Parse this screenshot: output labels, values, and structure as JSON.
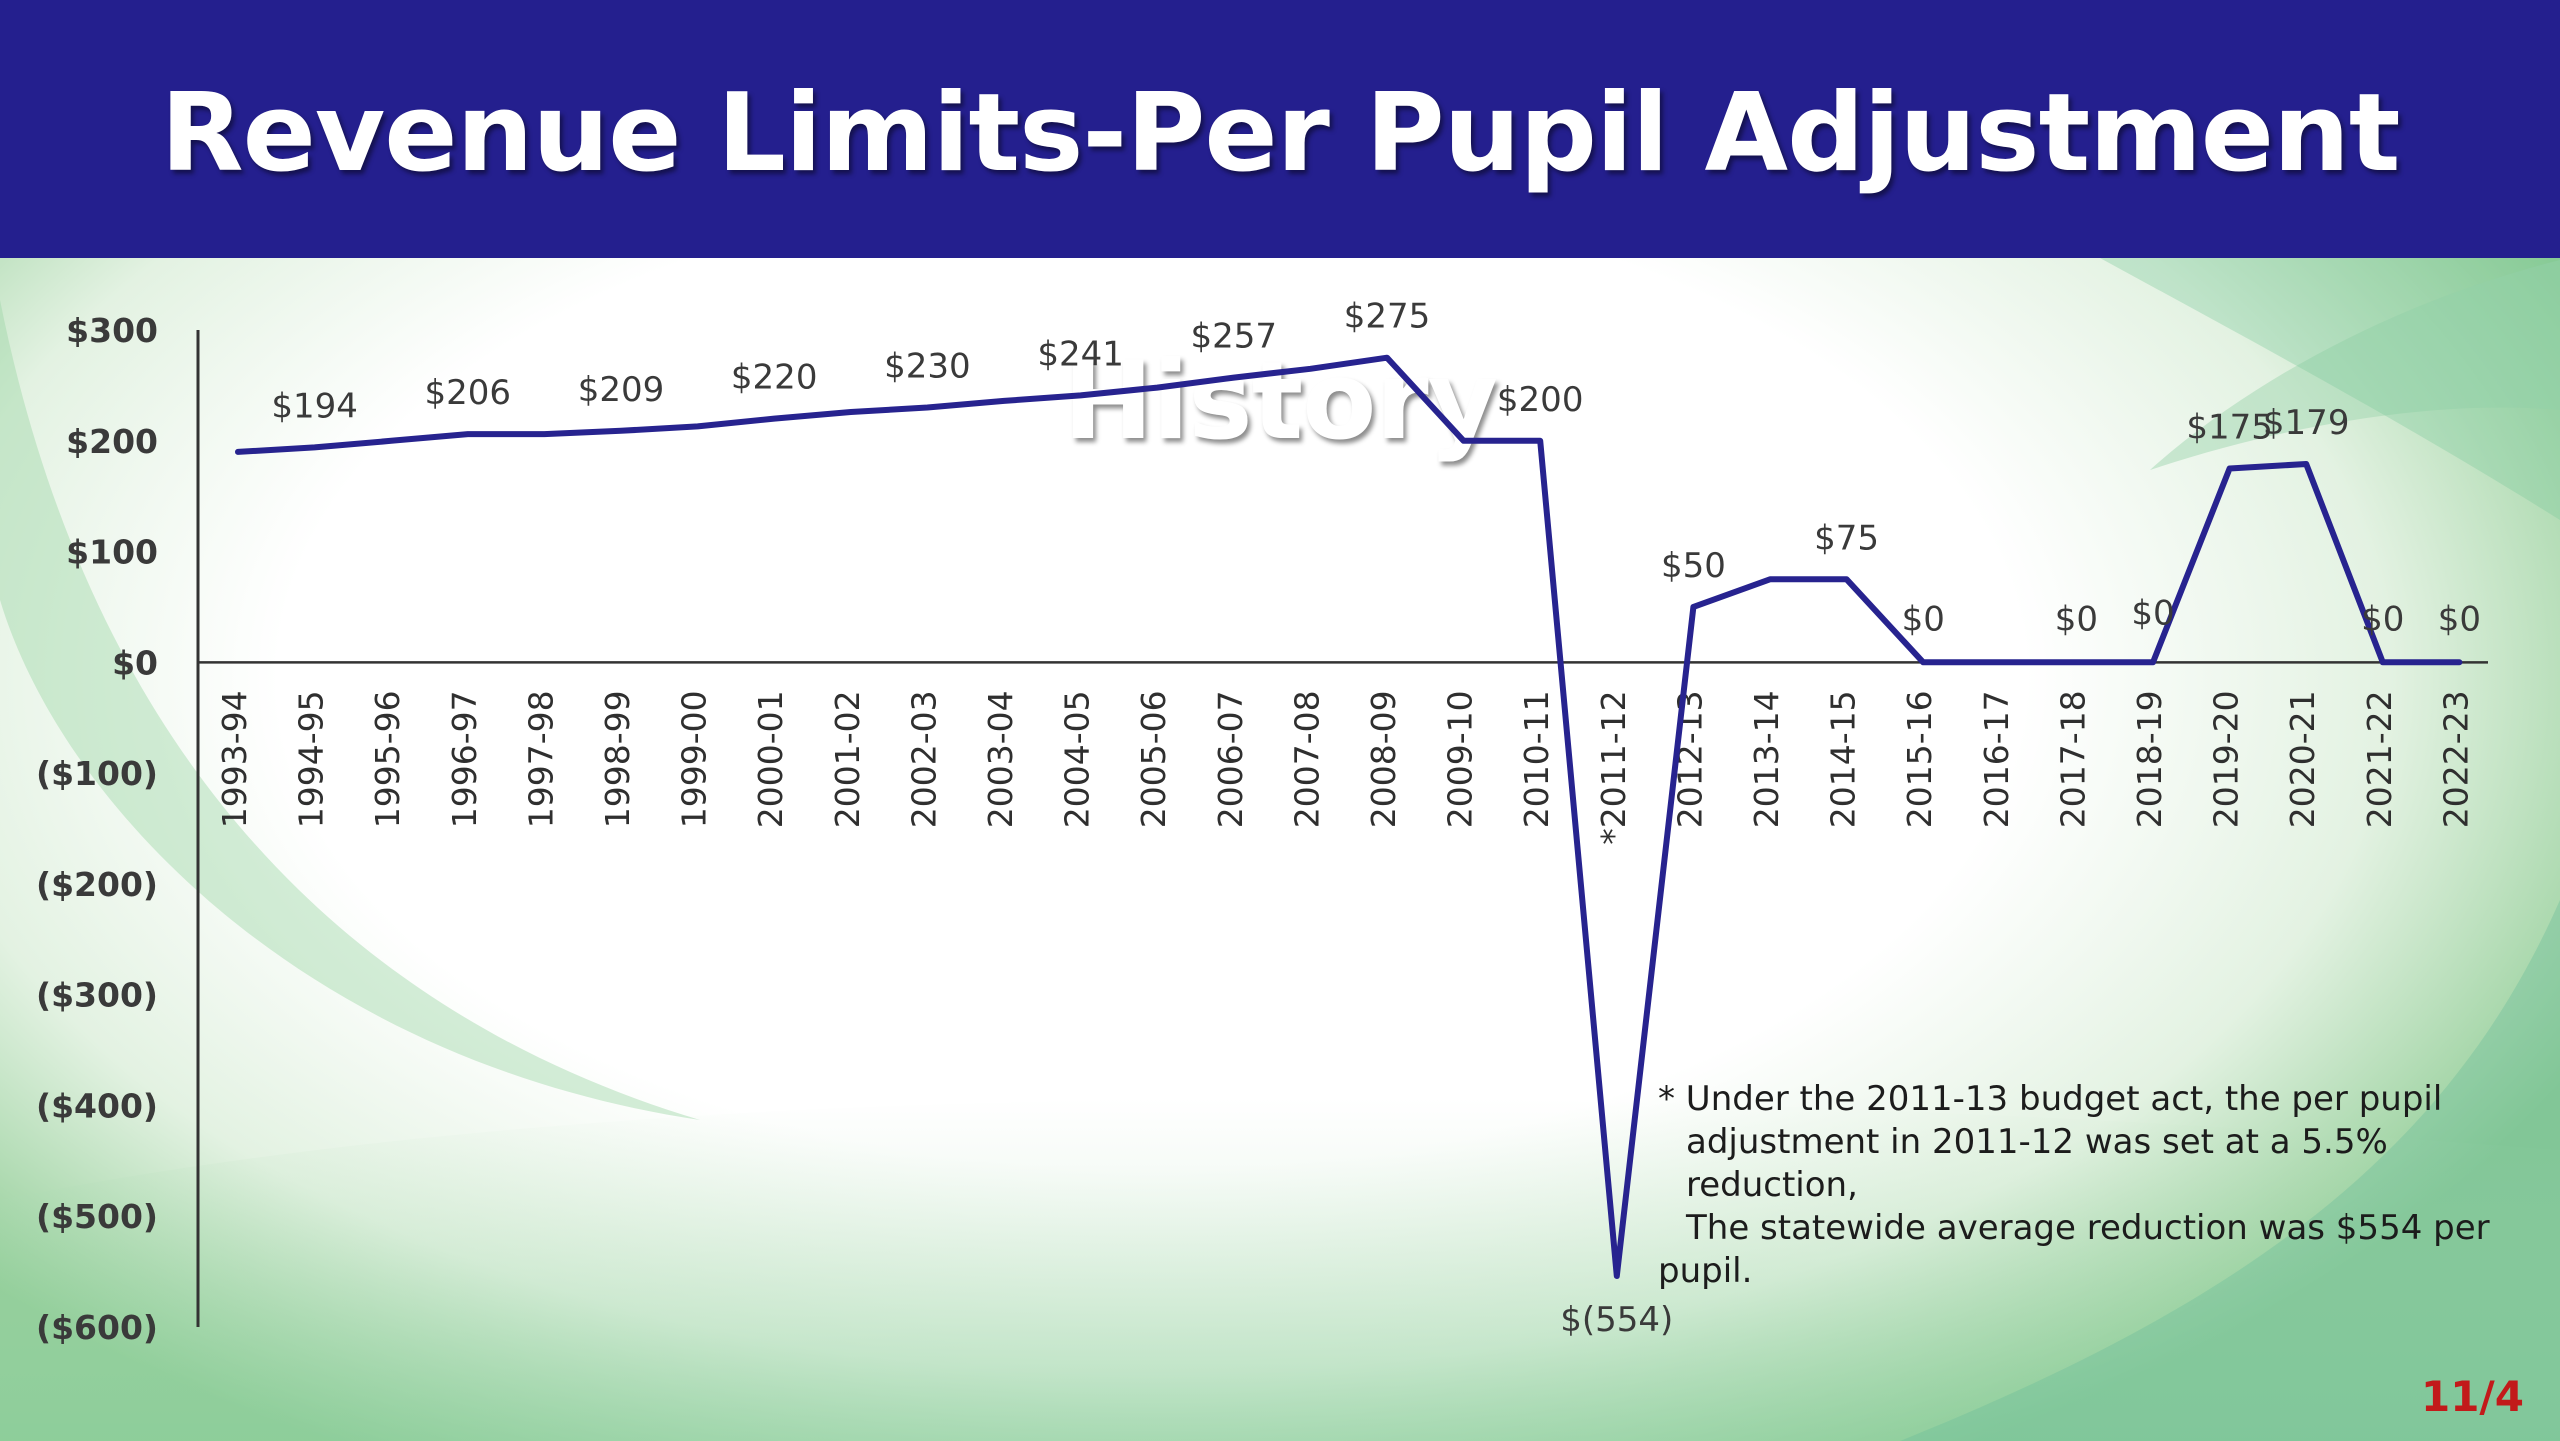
{
  "slide": {
    "title": "Revenue Limits-Per Pupil Adjustment History",
    "page_number": "11/4",
    "colors": {
      "header": "#241f8e",
      "line": "#27238f",
      "page_number": "#c21a1a"
    }
  },
  "footnote": {
    "line1": "* Under the 2011-13 budget act, the per pupil",
    "line2": "adjustment in 2011-12 was set at a 5.5% reduction,",
    "line3": "The statewide average reduction was $554 per",
    "line4": "pupil."
  },
  "chart_data": {
    "type": "line",
    "categories": [
      "1993-94",
      "1994-95",
      "1995-96",
      "1996-97",
      "1997-98",
      "1998-99",
      "1999-00",
      "2000-01",
      "2001-02",
      "2002-03",
      "2003-04",
      "2004-05",
      "2005-06",
      "2006-07",
      "2007-08",
      "2008-09",
      "2009-10",
      "2010-11",
      "2011-12",
      "2012-13",
      "2013-14",
      "2014-15",
      "2015-16",
      "2016-17",
      "2017-18",
      "2018-19",
      "2019-20",
      "2020-21",
      "2021-22",
      "2022-23"
    ],
    "category_labels": [
      "1993-94",
      "1994-95",
      "1995-96",
      "1996-97",
      "1997-98",
      "1998-99",
      "1999-00",
      "2000-01",
      "2001-02",
      "2002-03",
      "2003-04",
      "2004-05",
      "2005-06",
      "2006-07",
      "2007-08",
      "2008-09",
      "2009-10",
      "2010-11",
      "*2011-12",
      "2012-13",
      "2013-14",
      "2014-15",
      "2015-16",
      "2016-17",
      "2017-18",
      "2018-19",
      "2019-20",
      "2020-21",
      "2021-22",
      "2022-23"
    ],
    "values": [
      190,
      194,
      200,
      206,
      206,
      209,
      213,
      220,
      226,
      230,
      236,
      241,
      248,
      257,
      265,
      275,
      200,
      200,
      -554,
      50,
      75,
      75,
      0,
      0,
      0,
      0,
      175,
      179,
      0,
      0
    ],
    "data_labels": [
      {
        "index": 1,
        "text": "$194"
      },
      {
        "index": 3,
        "text": "$206"
      },
      {
        "index": 5,
        "text": "$209"
      },
      {
        "index": 7,
        "text": "$220"
      },
      {
        "index": 9,
        "text": "$230"
      },
      {
        "index": 11,
        "text": "$241"
      },
      {
        "index": 13,
        "text": "$257"
      },
      {
        "index": 15,
        "text": "$275"
      },
      {
        "index": 17,
        "text": "$200"
      },
      {
        "index": 18,
        "text": "$(554)"
      },
      {
        "index": 19,
        "text": "$50"
      },
      {
        "index": 21,
        "text": "$75"
      },
      {
        "index": 22,
        "text": "$0"
      },
      {
        "index": 24,
        "text": "$0"
      },
      {
        "index": 25,
        "text": "$0"
      },
      {
        "index": 26,
        "text": "$175"
      },
      {
        "index": 27,
        "text": "$179"
      },
      {
        "index": 28,
        "text": "$0"
      },
      {
        "index": 29,
        "text": "$0"
      }
    ],
    "ylim": [
      -600,
      300
    ],
    "yticks": [
      300,
      200,
      100,
      0,
      -100,
      -200,
      -300,
      -400,
      -500,
      -600
    ],
    "ytick_labels": [
      "$300",
      "$200",
      "$100",
      "$0",
      "($100)",
      "($200)",
      "($300)",
      "($400)",
      "($500)",
      "($600)"
    ],
    "title": "",
    "xlabel": "",
    "ylabel": "",
    "grid": false,
    "legend": "none"
  }
}
